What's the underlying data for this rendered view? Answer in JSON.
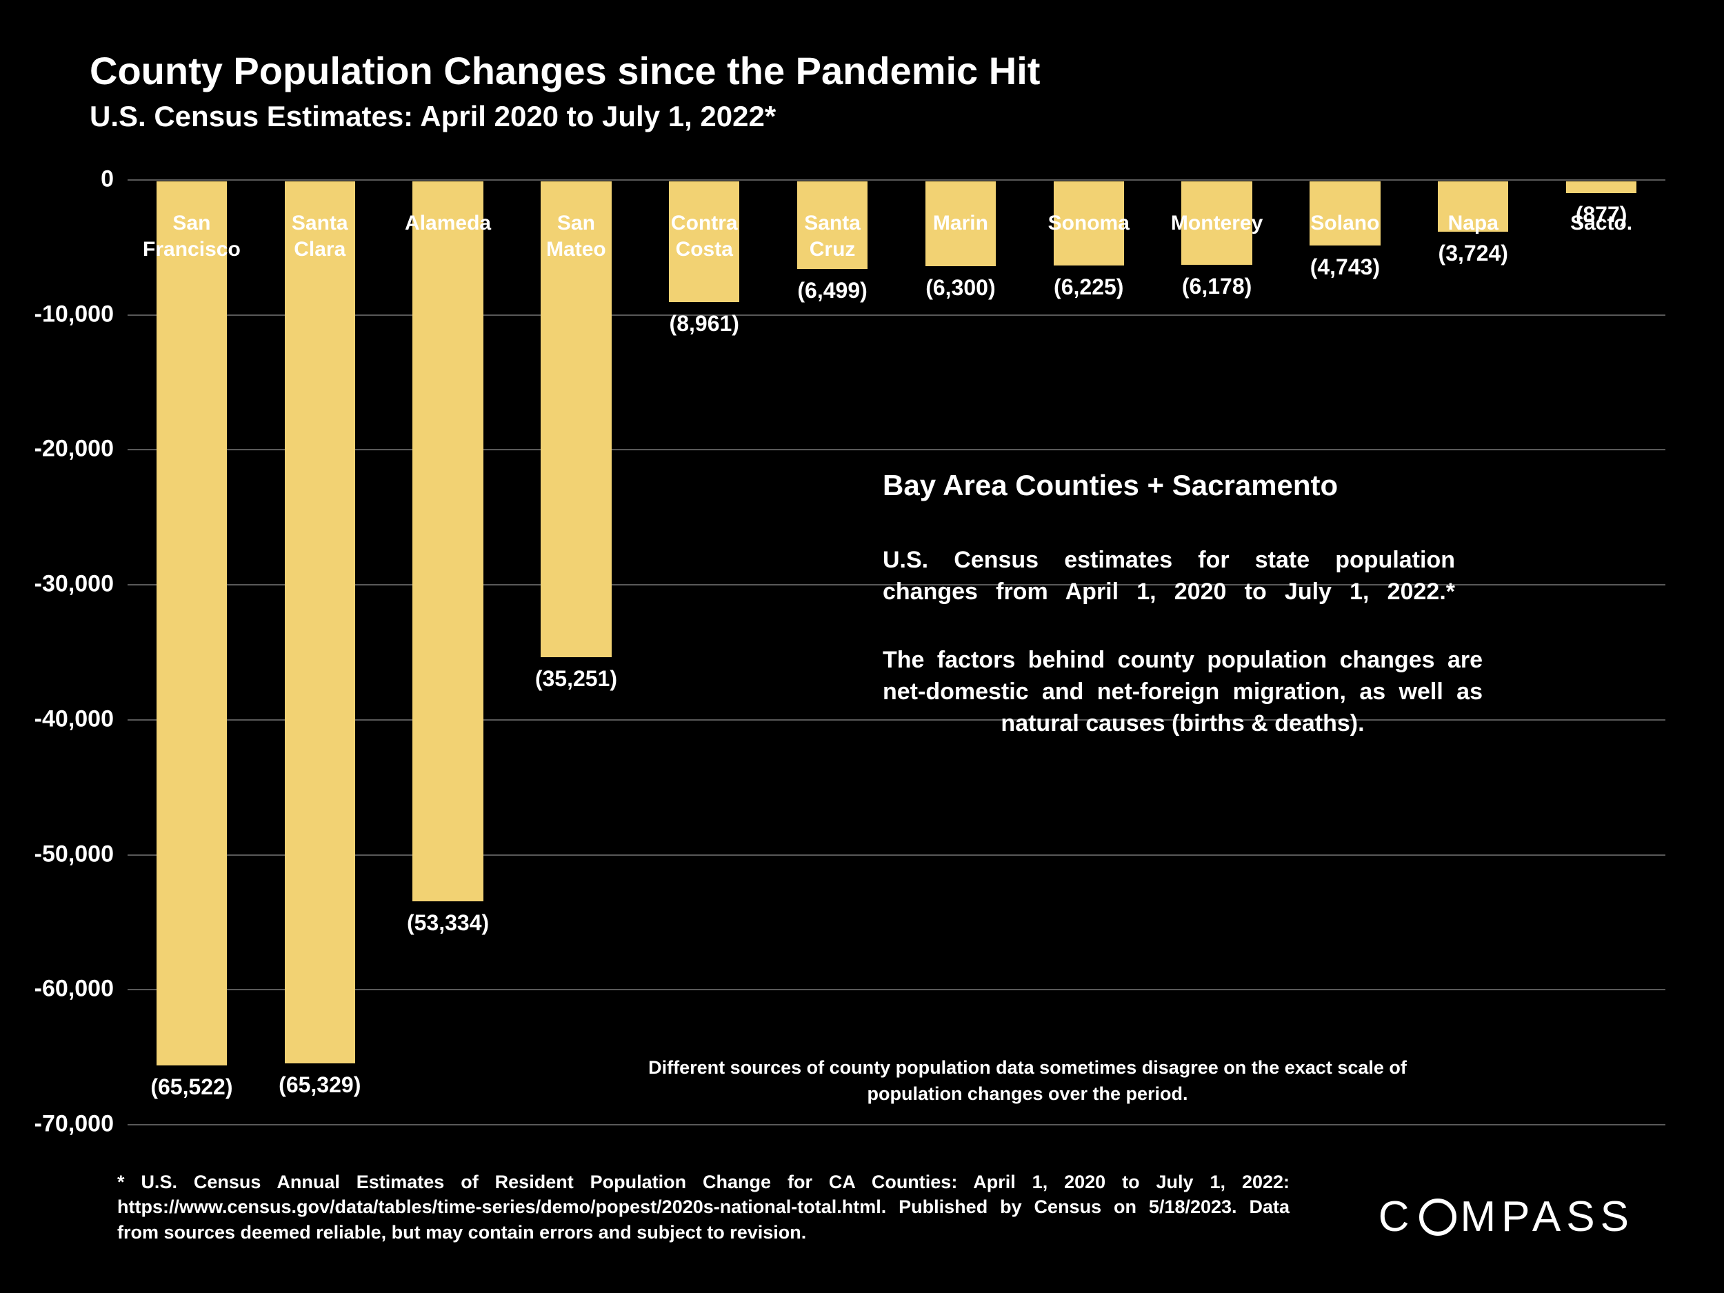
{
  "title": "County Population Changes since the Pandemic Hit",
  "subtitle": "U.S. Census Estimates: April 2020 to July 1, 2022*",
  "chart": {
    "type": "bar",
    "background_color": "#000000",
    "bar_color": "#f2d273",
    "grid_color": "#595959",
    "text_color": "#ffffff",
    "ylim_min": -70000,
    "ylim_max": 0,
    "ytick_step": 10000,
    "yticks": [
      {
        "value": 0,
        "label": "0"
      },
      {
        "value": -10000,
        "label": "-10,000"
      },
      {
        "value": -20000,
        "label": "-20,000"
      },
      {
        "value": -30000,
        "label": "-30,000"
      },
      {
        "value": -40000,
        "label": "-40,000"
      },
      {
        "value": -50000,
        "label": "-50,000"
      },
      {
        "value": -60000,
        "label": "-60,000"
      },
      {
        "value": -70000,
        "label": "-70,000"
      }
    ],
    "bar_width": 0.55,
    "label_fontsize": 30,
    "value_fontsize": 32,
    "ytick_fontsize": 34,
    "series": [
      {
        "label": "San\nFrancisco",
        "value": -65522,
        "display": "(65,522)"
      },
      {
        "label": "Santa\nClara",
        "value": -65329,
        "display": "(65,329)"
      },
      {
        "label": "Alameda",
        "value": -53334,
        "display": "(53,334)"
      },
      {
        "label": "San\nMateo",
        "value": -35251,
        "display": "(35,251)"
      },
      {
        "label": "Contra\nCosta",
        "value": -8961,
        "display": "(8,961)"
      },
      {
        "label": "Santa\nCruz",
        "value": -6499,
        "display": "(6,499)"
      },
      {
        "label": "Marin",
        "value": -6300,
        "display": "(6,300)"
      },
      {
        "label": "Sonoma",
        "value": -6225,
        "display": "(6,225)"
      },
      {
        "label": "Monterey",
        "value": -6178,
        "display": "(6,178)"
      },
      {
        "label": "Solano",
        "value": -4743,
        "display": "(4,743)"
      },
      {
        "label": "Napa",
        "value": -3724,
        "display": "(3,724)"
      },
      {
        "label": "Sacto.",
        "value": -877,
        "display": "(877)"
      }
    ]
  },
  "annotations": {
    "heading": "Bay Area Counties + Sacramento",
    "line1": "U.S. Census estimates for state population changes from April 1, 2020 to July 1, 2022.*",
    "line2": "The factors behind county population changes are net-domestic and net-foreign migration, as well as natural causes (births & deaths).",
    "footnote": "Different sources of county population data sometimes disagree on the exact scale of population changes over the period."
  },
  "source": "* U.S. Census Annual Estimates of Resident Population Change for CA Counties: April 1, 2020 to July 1, 2022: https://www.census.gov/data/tables/time-series/demo/popest/2020s-national-total.html. Published by Census on 5/18/2023. Data from sources deemed reliable, but may contain errors and subject to revision.",
  "logo_text": "COMPASS"
}
